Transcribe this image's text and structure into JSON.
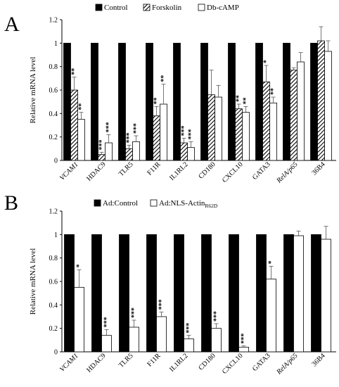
{
  "chart_data": [
    {
      "panel_label": "A",
      "type": "bar",
      "ylabel": "Relative mRNA level",
      "ylim": [
        0,
        1.2
      ],
      "yticks": [
        "0",
        "0.2",
        "0.4",
        "0.6",
        "0.8",
        "1",
        "1.2"
      ],
      "categories": [
        "VCAM1",
        "HDAC9",
        "TLR5",
        "F11R",
        "IL1RL2",
        "CD180",
        "CXCL10",
        "GATA3",
        "RelA/p65",
        "36B4"
      ],
      "italic_categories": [
        "VCAM1",
        "RelA/p65"
      ],
      "series": [
        {
          "name": "Control",
          "color": "#000000",
          "fill": "solid",
          "values": [
            1,
            1,
            1,
            1,
            1,
            1,
            1,
            1,
            1,
            1
          ],
          "errors": [
            0,
            0,
            0,
            0,
            0,
            0,
            0,
            0,
            0,
            0
          ],
          "significance": [
            "",
            "",
            "",
            "",
            "",
            "",
            "",
            "",
            "",
            ""
          ]
        },
        {
          "name": "Forskolin",
          "color": "#000000",
          "fill": "hatch",
          "values": [
            0.6,
            0.05,
            0.1,
            0.38,
            0.15,
            0.56,
            0.44,
            0.67,
            0.77,
            1.02
          ],
          "errors": [
            0.11,
            0.02,
            0.03,
            0.08,
            0.04,
            0.21,
            0.04,
            0.14,
            0.02,
            0.12
          ],
          "significance": [
            "**",
            "***",
            "***",
            "**",
            "***",
            "",
            "**",
            "*",
            "",
            ""
          ]
        },
        {
          "name": "Db-cAMP",
          "color": "#ffffff",
          "fill": "open",
          "values": [
            0.35,
            0.15,
            0.16,
            0.48,
            0.11,
            0.54,
            0.41,
            0.49,
            0.84,
            0.93
          ],
          "errors": [
            0.06,
            0.07,
            0.05,
            0.17,
            0.05,
            0.1,
            0.05,
            0.05,
            0.08,
            0.09
          ],
          "significance": [
            "**",
            "***",
            "***",
            "**",
            "***",
            "",
            "**",
            "**",
            "",
            ""
          ]
        }
      ],
      "legend": {
        "placement": "top",
        "entries": [
          "Control",
          "Forskolin",
          "Db-cAMP"
        ]
      }
    },
    {
      "panel_label": "B",
      "type": "bar",
      "ylabel": "Relative mRNA level",
      "ylim": [
        0,
        1.2
      ],
      "yticks": [
        "0",
        "0.2",
        "0.4",
        "0.6",
        "0.8",
        "1",
        "1.2"
      ],
      "categories": [
        "VCAM1",
        "HDAC9",
        "TLR5",
        "F11R",
        "IL1RL2",
        "CD180",
        "CXCL10",
        "GATA3",
        "RelA/p65",
        "36B4"
      ],
      "italic_categories": [
        "VCAM1",
        "RelA/p65"
      ],
      "series": [
        {
          "name": "Ad:Control",
          "color": "#000000",
          "fill": "solid",
          "values": [
            1,
            1,
            1,
            1,
            1,
            1,
            1,
            1,
            1,
            1
          ],
          "errors": [
            0,
            0,
            0,
            0,
            0,
            0,
            0,
            0,
            0,
            0
          ],
          "significance": [
            "",
            "",
            "",
            "",
            "",
            "",
            "",
            "",
            "",
            ""
          ]
        },
        {
          "name": "Ad:NLS-Actin",
          "name_subscript": "R62D",
          "color": "#ffffff",
          "fill": "open",
          "values": [
            0.55,
            0.14,
            0.21,
            0.3,
            0.11,
            0.2,
            0.04,
            0.62,
            0.99,
            0.96
          ],
          "errors": [
            0.15,
            0.05,
            0.06,
            0.04,
            0.03,
            0.04,
            0.01,
            0.11,
            0.04,
            0.11
          ],
          "significance": [
            "*",
            "***",
            "***",
            "***",
            "***",
            "***",
            "***",
            "*",
            "",
            ""
          ]
        }
      ],
      "legend": {
        "placement": "top",
        "entries": [
          "Ad:Control",
          "Ad:NLS-Actin"
        ]
      }
    }
  ]
}
